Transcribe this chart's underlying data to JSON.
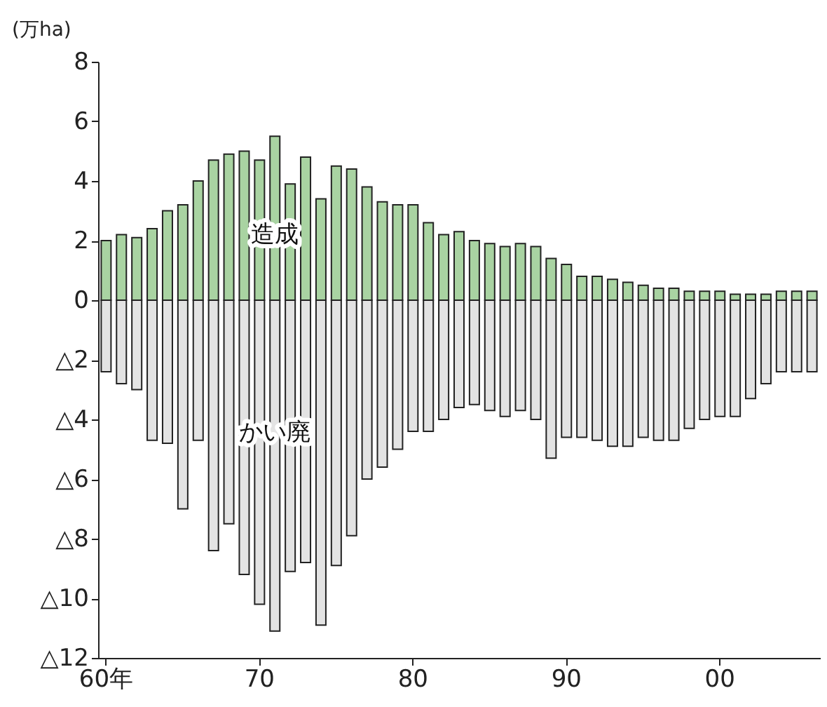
{
  "chart_data": {
    "type": "bar",
    "ylabel": "(万ha)",
    "categories": [
      "60年",
      null,
      null,
      null,
      null,
      null,
      null,
      null,
      null,
      null,
      "70",
      null,
      null,
      null,
      null,
      null,
      null,
      null,
      null,
      null,
      "80",
      null,
      null,
      null,
      null,
      null,
      null,
      null,
      null,
      null,
      "90",
      null,
      null,
      null,
      null,
      null,
      null,
      null,
      null,
      null,
      "00",
      null,
      null,
      null,
      null,
      null,
      null
    ],
    "stacked": true,
    "series": [
      {
        "name": "造成",
        "color": "#a9d3a2",
        "values": [
          2.0,
          2.2,
          2.1,
          2.4,
          3.0,
          3.2,
          4.0,
          4.7,
          4.9,
          5.0,
          4.7,
          5.5,
          3.9,
          4.8,
          3.4,
          4.5,
          4.4,
          3.8,
          3.3,
          3.2,
          3.2,
          2.6,
          2.2,
          2.3,
          2.0,
          1.9,
          1.8,
          1.9,
          1.8,
          1.4,
          1.2,
          0.8,
          0.8,
          0.7,
          0.6,
          0.5,
          0.4,
          0.4,
          0.3,
          0.3,
          0.3,
          0.2,
          0.2,
          0.2,
          0.3,
          0.3,
          0.3
        ]
      },
      {
        "name": "かい廃",
        "color": "#e3e3e3",
        "values": [
          -2.4,
          -2.8,
          -3.0,
          -4.7,
          -4.8,
          -7.0,
          -4.7,
          -8.4,
          -7.5,
          -9.2,
          -10.2,
          -11.1,
          -9.1,
          -8.8,
          -10.9,
          -8.9,
          -7.9,
          -6.0,
          -5.6,
          -5.0,
          -4.4,
          -4.4,
          -4.0,
          -3.6,
          -3.5,
          -3.7,
          -3.9,
          -3.7,
          -4.0,
          -5.3,
          -4.6,
          -4.6,
          -4.7,
          -4.9,
          -4.9,
          -4.6,
          -4.7,
          -4.7,
          -4.3,
          -4.0,
          -3.9,
          -3.9,
          -3.3,
          -2.8,
          -2.4,
          -2.4,
          -2.4
        ]
      }
    ],
    "ylim": [
      -12,
      8
    ],
    "yticks": [
      8,
      6,
      4,
      2,
      0,
      {
        "value": -2,
        "label": "△2"
      },
      {
        "value": -4,
        "label": "△4"
      },
      {
        "value": -6,
        "label": "△6"
      },
      {
        "value": -8,
        "label": "△8"
      },
      {
        "value": -10,
        "label": "△10"
      },
      {
        "value": -12,
        "label": "△12"
      }
    ],
    "grid": false,
    "legend": false
  }
}
